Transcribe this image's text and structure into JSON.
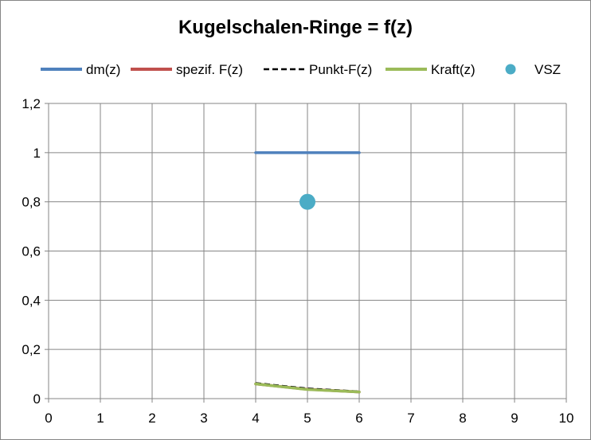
{
  "chart_data": {
    "type": "scatter",
    "title": "Kugelschalen-Ringe = f(z)",
    "xlabel": "",
    "ylabel": "",
    "xlim": [
      0,
      10
    ],
    "ylim": [
      0,
      1.2
    ],
    "x_ticks": [
      "0",
      "1",
      "2",
      "3",
      "4",
      "5",
      "6",
      "7",
      "8",
      "9",
      "10"
    ],
    "y_ticks": [
      "0",
      "0,2",
      "0,4",
      "0,6",
      "0,8",
      "1",
      "1,2"
    ],
    "grid": true,
    "legend_position": "top",
    "series": [
      {
        "name": "dm(z)",
        "style": "line",
        "color": "#4f81bd",
        "x": [
          4,
          6
        ],
        "y": [
          1,
          1
        ]
      },
      {
        "name": "spezif. F(z)",
        "style": "line",
        "color": "#c0504d",
        "x": [
          4,
          5,
          6
        ],
        "y": [
          0.06,
          0.038,
          0.027
        ]
      },
      {
        "name": "Punkt-F(z)",
        "style": "dashed",
        "color": "#000000",
        "x": [
          4,
          5,
          6
        ],
        "y": [
          0.063,
          0.041,
          0.029
        ]
      },
      {
        "name": "Kraft(z)",
        "style": "line",
        "color": "#9bbb59",
        "x": [
          4,
          5,
          6
        ],
        "y": [
          0.06,
          0.037,
          0.027
        ]
      },
      {
        "name": "VSZ",
        "style": "marker",
        "color": "#4bacc6",
        "x": [
          5
        ],
        "y": [
          0.8
        ]
      }
    ]
  }
}
